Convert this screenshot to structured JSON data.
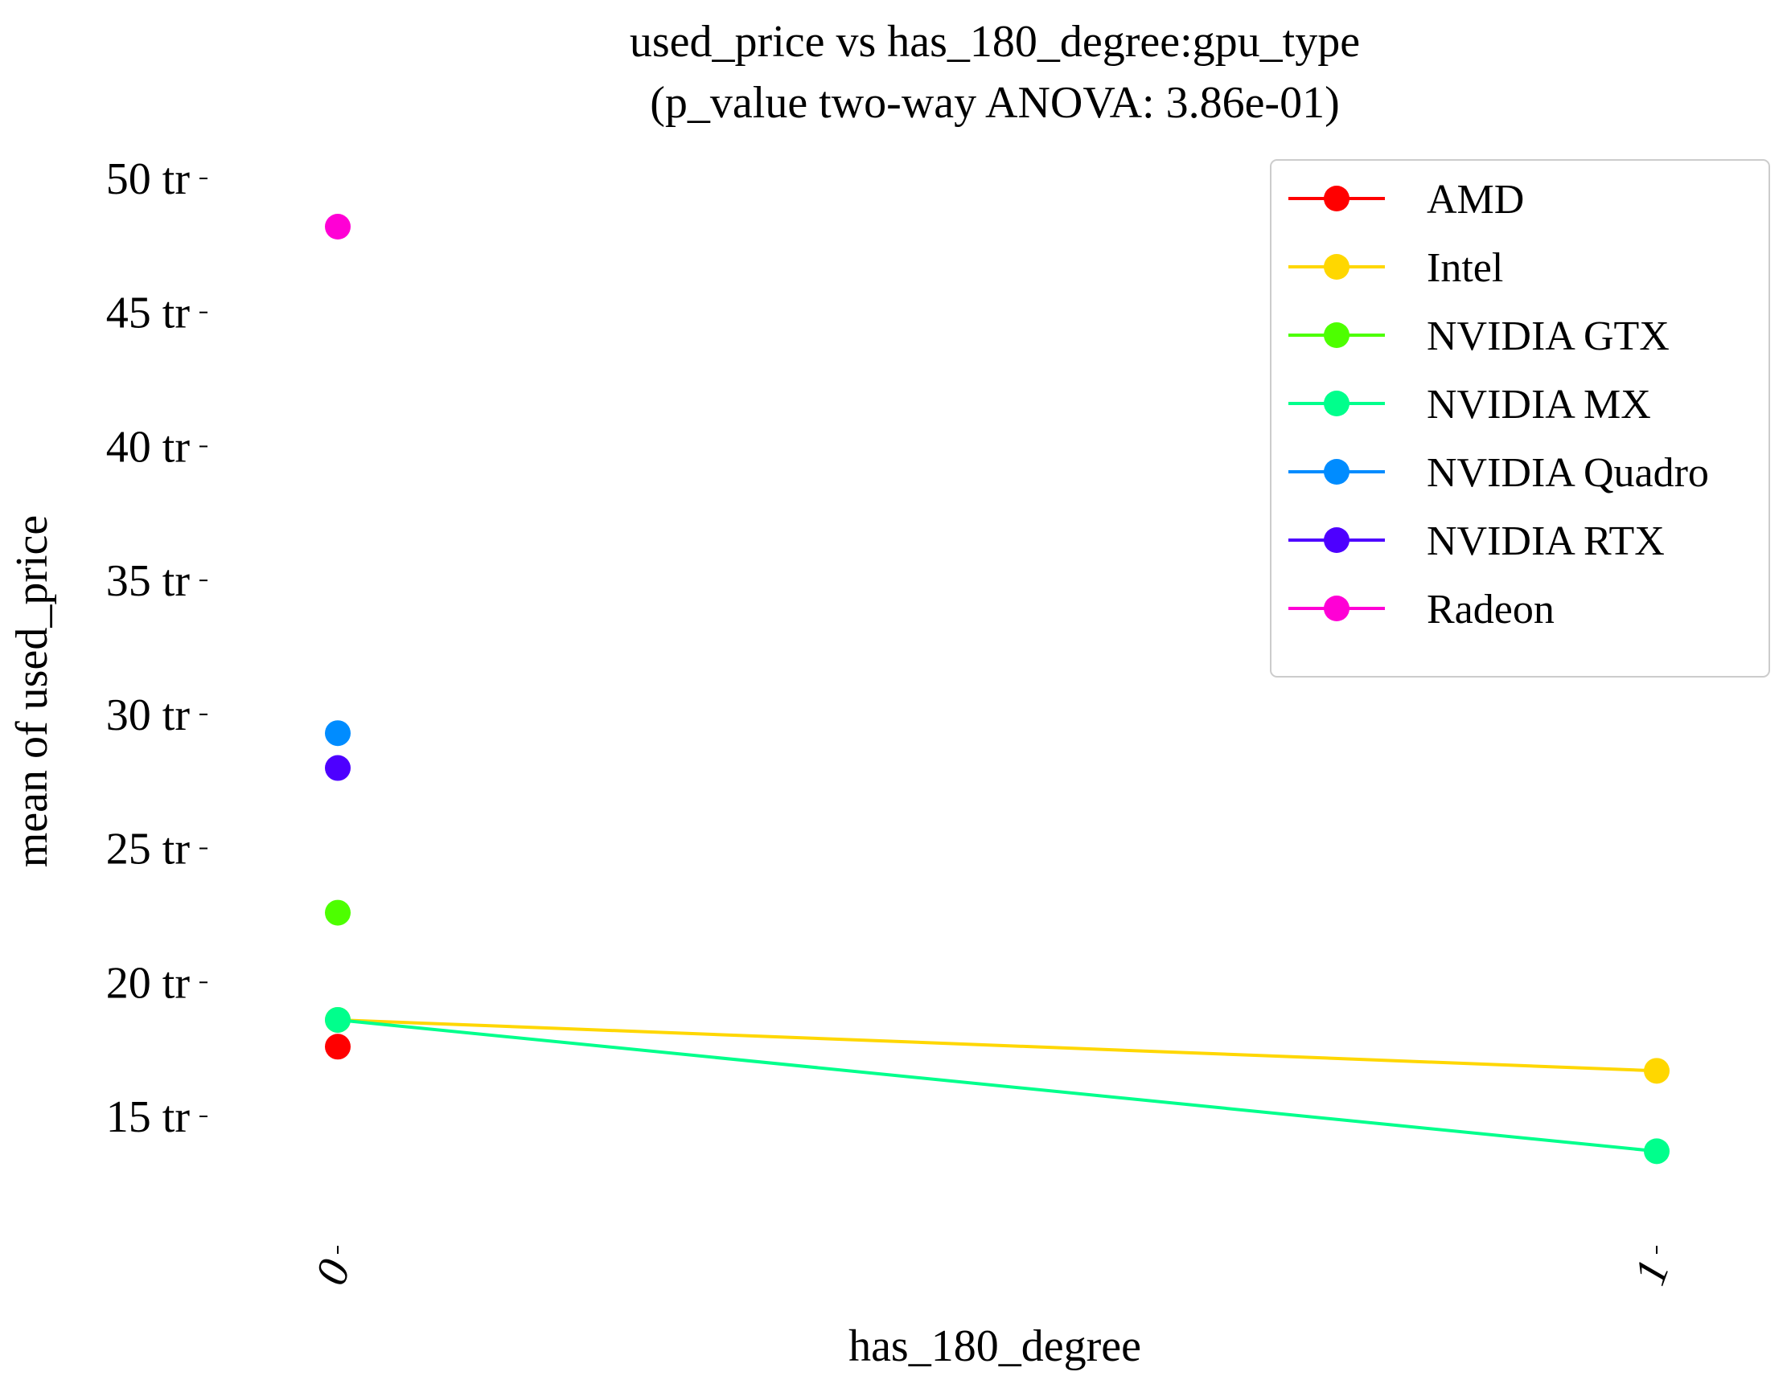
{
  "chart_data": {
    "type": "line",
    "title": "used_price vs has_180_degree:gpu_type",
    "subtitle": "(p_value two-way ANOVA: 3.86e-01)",
    "xlabel": "has_180_degree",
    "ylabel": "mean of used_price",
    "categories": [
      "0",
      "1"
    ],
    "y_ticks": [
      {
        "value": 15,
        "label": "15 tr"
      },
      {
        "value": 20,
        "label": "20 tr"
      },
      {
        "value": 25,
        "label": "25 tr"
      },
      {
        "value": 30,
        "label": "30 tr"
      },
      {
        "value": 35,
        "label": "35 tr"
      },
      {
        "value": 40,
        "label": "40 tr"
      },
      {
        "value": 45,
        "label": "45 tr"
      },
      {
        "value": 50,
        "label": "50 tr"
      }
    ],
    "ylim": [
      10.5,
      51.2
    ],
    "y_unit_note": "values in millions (tr)",
    "grid": false,
    "legend_position": "top-right",
    "series": [
      {
        "name": "AMD",
        "color": "#ff0000",
        "values": [
          17.6,
          null
        ]
      },
      {
        "name": "Intel",
        "color": "#ffd700",
        "values": [
          18.6,
          16.7
        ]
      },
      {
        "name": "NVIDIA GTX",
        "color": "#4dff00",
        "values": [
          22.6,
          null
        ]
      },
      {
        "name": "NVIDIA MX",
        "color": "#00ff8c",
        "values": [
          18.6,
          13.7
        ]
      },
      {
        "name": "NVIDIA Quadro",
        "color": "#008cff",
        "values": [
          29.3,
          null
        ]
      },
      {
        "name": "NVIDIA RTX",
        "color": "#4d00ff",
        "values": [
          28.0,
          null
        ]
      },
      {
        "name": "Radeon",
        "color": "#ff00d5",
        "values": [
          48.2,
          null
        ]
      }
    ]
  }
}
